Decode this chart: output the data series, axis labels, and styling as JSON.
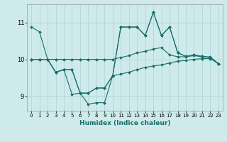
{
  "title": "",
  "xlabel": "Humidex (Indice chaleur)",
  "ylabel": "",
  "bg_color": "#ceeaea",
  "line_color": "#1a6e6a",
  "grid_color": "#aed4d4",
  "xlim": [
    -0.5,
    23.5
  ],
  "ylim": [
    8.6,
    11.5
  ],
  "yticks": [
    9,
    10,
    11
  ],
  "xticks": [
    0,
    1,
    2,
    3,
    4,
    5,
    6,
    7,
    8,
    9,
    10,
    11,
    12,
    13,
    14,
    15,
    16,
    17,
    18,
    19,
    20,
    21,
    22,
    23
  ],
  "series": [
    {
      "x": [
        0,
        1,
        2,
        3,
        4,
        5,
        6,
        7,
        8,
        9,
        10,
        11,
        12,
        13,
        14,
        15,
        16,
        17,
        18,
        19,
        20,
        21,
        22,
        23
      ],
      "y": [
        10.88,
        10.75,
        10.0,
        9.65,
        9.72,
        9.05,
        9.08,
        8.78,
        8.82,
        8.82,
        9.55,
        10.88,
        10.88,
        10.88,
        10.65,
        11.28,
        10.65,
        10.88,
        10.18,
        10.08,
        10.12,
        10.08,
        10.05,
        9.88
      ]
    },
    {
      "x": [
        0,
        1,
        2,
        3,
        4,
        5,
        6,
        7,
        8,
        9,
        10,
        11,
        12,
        13,
        14,
        15,
        16,
        17,
        18,
        19,
        20,
        21,
        22,
        23
      ],
      "y": [
        10.0,
        10.0,
        10.0,
        10.0,
        10.0,
        10.0,
        10.0,
        10.0,
        10.0,
        10.0,
        10.0,
        10.05,
        10.1,
        10.18,
        10.22,
        10.28,
        10.32,
        10.12,
        10.07,
        10.07,
        10.1,
        10.07,
        10.07,
        9.88
      ]
    },
    {
      "x": [
        0,
        1,
        2,
        3,
        4,
        5,
        6,
        7,
        8,
        9,
        10,
        11,
        12,
        13,
        14,
        15,
        16,
        17,
        18,
        19,
        20,
        21,
        22,
        23
      ],
      "y": [
        10.0,
        10.0,
        10.0,
        9.65,
        9.72,
        9.72,
        9.08,
        9.08,
        9.22,
        9.22,
        9.55,
        10.88,
        10.88,
        10.88,
        10.65,
        11.28,
        10.65,
        10.88,
        10.18,
        10.08,
        10.12,
        10.08,
        10.05,
        9.88
      ]
    },
    {
      "x": [
        0,
        1,
        2,
        3,
        4,
        5,
        6,
        7,
        8,
        9,
        10,
        11,
        12,
        13,
        14,
        15,
        16,
        17,
        18,
        19,
        20,
        21,
        22,
        23
      ],
      "y": [
        10.0,
        10.0,
        10.0,
        9.65,
        9.72,
        9.72,
        9.08,
        9.08,
        9.22,
        9.22,
        9.55,
        9.6,
        9.65,
        9.72,
        9.78,
        9.82,
        9.85,
        9.9,
        9.95,
        9.97,
        10.0,
        10.02,
        10.02,
        9.88
      ]
    }
  ]
}
